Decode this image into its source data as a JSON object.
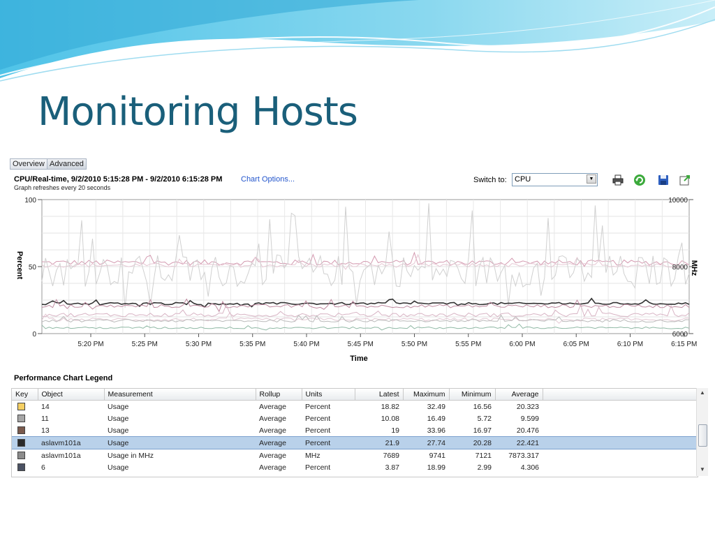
{
  "slide": {
    "title": "Monitoring Hosts"
  },
  "tabs": [
    {
      "label": "Overview"
    },
    {
      "label": "Advanced",
      "selected": true
    }
  ],
  "chart_header": {
    "heading": "CPU/Real-time, 9/2/2010 5:15:28 PM - 9/2/2010 6:15:28 PM",
    "options_link": "Chart Options...",
    "refresh_note": "Graph refreshes every 20 seconds",
    "switch_label": "Switch to:",
    "switch_value": "CPU"
  },
  "toolbar_icons": [
    "printer-icon",
    "refresh-icon",
    "save-icon",
    "export-icon"
  ],
  "colors": {
    "title": "#1a5f7a",
    "selection": "#b9d1ea",
    "link": "#2255cc"
  },
  "chart_data": {
    "type": "line",
    "xlabel": "Time",
    "ylabel_left": "Percent",
    "ylabel_right": "MHz",
    "ylim_left": [
      0,
      100
    ],
    "ylim_right": [
      6000,
      10000
    ],
    "yticks_left": [
      "100",
      "50",
      "0"
    ],
    "yticks_right": [
      "10000",
      "8000",
      "6000"
    ],
    "xticks": [
      "5:20 PM",
      "5:25 PM",
      "5:30 PM",
      "5:35 PM",
      "5:40 PM",
      "5:45 PM",
      "5:50 PM",
      "5:55 PM",
      "6:00 PM",
      "6:05 PM",
      "6:10 PM",
      "6:15 PM"
    ],
    "x_range_minutes": [
      0,
      60
    ],
    "grid": true,
    "series": [
      {
        "color": "#d49ab0",
        "axis": "left",
        "mean": 53,
        "jitter": 2.0,
        "spikes": 0.05
      },
      {
        "color": "#e6c7d3",
        "axis": "left",
        "mean": 51,
        "jitter": 1.5,
        "spikes": 0.03
      },
      {
        "color": "#d0d0d0",
        "axis": "right",
        "mean": 7873,
        "jitter": 480,
        "spikes": 0.1
      },
      {
        "color": "#333333",
        "axis": "left",
        "mean": 22.4,
        "jitter": 0.8,
        "spikes": 0.05,
        "width": 1.6
      },
      {
        "color": "#c08aa0",
        "axis": "left",
        "mean": 20.5,
        "jitter": 1.2,
        "spikes": 0.06
      },
      {
        "color": "#d8b4c4",
        "axis": "left",
        "mean": 14,
        "jitter": 1.5,
        "spikes": 0.05
      },
      {
        "color": "#e3c8d3",
        "axis": "left",
        "mean": 10.5,
        "jitter": 1.2,
        "spikes": 0.04
      },
      {
        "color": "#bbbbbb",
        "axis": "left",
        "mean": 9.6,
        "jitter": 1.0,
        "spikes": 0.04
      },
      {
        "color": "#8fb8a4",
        "axis": "left",
        "mean": 4.3,
        "jitter": 0.7,
        "spikes": 0.05
      }
    ]
  },
  "legend": {
    "title": "Performance Chart Legend",
    "columns": [
      "Key",
      "Object",
      "Measurement",
      "Rollup",
      "Units",
      "Latest",
      "Maximum",
      "Minimum",
      "Average"
    ],
    "rows": [
      {
        "key_color": "#f5cf63",
        "object": "14",
        "measurement": "Usage",
        "rollup": "Average",
        "units": "Percent",
        "latest": "18.82",
        "maximum": "32.49",
        "minimum": "16.56",
        "average": "20.323"
      },
      {
        "key_color": "#a6a6a6",
        "object": "11",
        "measurement": "Usage",
        "rollup": "Average",
        "units": "Percent",
        "latest": "10.08",
        "maximum": "16.49",
        "minimum": "5.72",
        "average": "9.599"
      },
      {
        "key_color": "#7a5a4d",
        "object": "13",
        "measurement": "Usage",
        "rollup": "Average",
        "units": "Percent",
        "latest": "19",
        "maximum": "33.96",
        "minimum": "16.97",
        "average": "20.476"
      },
      {
        "key_color": "#2a2a2a",
        "object": "aslavm101a",
        "measurement": "Usage",
        "rollup": "Average",
        "units": "Percent",
        "latest": "21.9",
        "maximum": "27.74",
        "minimum": "20.28",
        "average": "22.421",
        "selected": true
      },
      {
        "key_color": "#8c8c8c",
        "object": "aslavm101a",
        "measurement": "Usage in MHz",
        "rollup": "Average",
        "units": "MHz",
        "latest": "7689",
        "maximum": "9741",
        "minimum": "7121",
        "average": "7873.317"
      },
      {
        "key_color": "#4b5263",
        "object": "6",
        "measurement": "Usage",
        "rollup": "Average",
        "units": "Percent",
        "latest": "3.87",
        "maximum": "18.99",
        "minimum": "2.99",
        "average": "4.306"
      }
    ]
  }
}
